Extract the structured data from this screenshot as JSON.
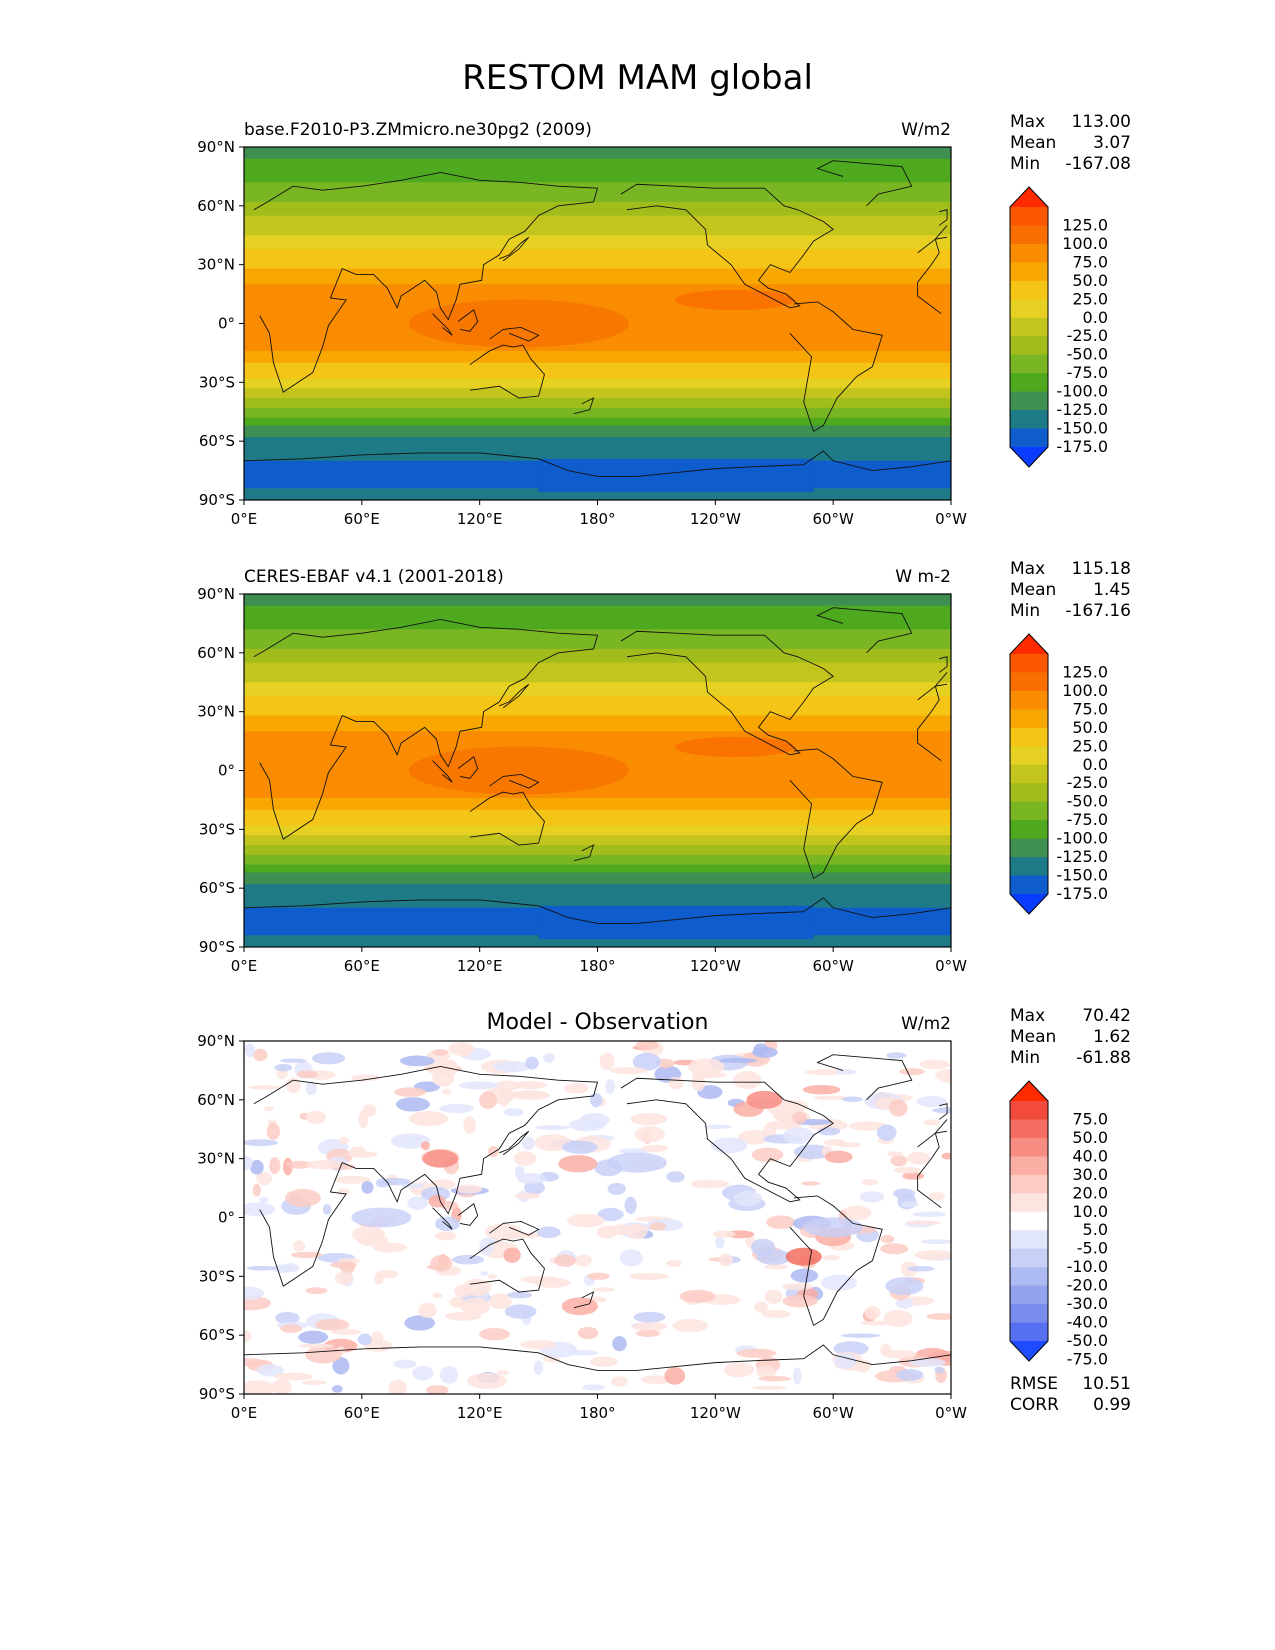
{
  "title": "RESTOM MAM global",
  "chart_data": [
    {
      "type": "heatmap",
      "title": "base.F2010-P3.ZMmicro.ne30pg2 (2009)",
      "units": "W/m2",
      "stats": {
        "max_label": "Max",
        "max": "113.00",
        "mean_label": "Mean",
        "mean": "3.07",
        "min_label": "Min",
        "min": "-167.08"
      },
      "colorbar": {
        "levels": [
          "125.0",
          "100.0",
          "75.0",
          "50.0",
          "25.0",
          "0.0",
          "-25.0",
          "-50.0",
          "-75.0",
          "-100.0",
          "-125.0",
          "-150.0",
          "-175.0"
        ],
        "colors": [
          "#ff2a00",
          "#fb5700",
          "#f86e00",
          "#f98c00",
          "#f8a700",
          "#f4c416",
          "#e6d022",
          "#c4c41e",
          "#a1bd1c",
          "#7ab623",
          "#4ea91f",
          "#3f8e52",
          "#1e7a86",
          "#0f5ccc",
          "#0a3cff"
        ]
      },
      "xlabels": [
        "0°E",
        "60°E",
        "120°E",
        "180°",
        "120°W",
        "60°W",
        "0°W"
      ],
      "ylabels": [
        "90°N",
        "60°N",
        "30°N",
        "0°",
        "30°S",
        "60°S",
        "90°S"
      ],
      "xlim": [
        0,
        360
      ],
      "ylim": [
        -90,
        90
      ]
    },
    {
      "type": "heatmap",
      "title": "CERES-EBAF v4.1 (2001-2018)",
      "units": "W m-2",
      "stats": {
        "max_label": "Max",
        "max": "115.18",
        "mean_label": "Mean",
        "mean": "1.45",
        "min_label": "Min",
        "min": "-167.16"
      },
      "colorbar": {
        "levels": [
          "125.0",
          "100.0",
          "75.0",
          "50.0",
          "25.0",
          "0.0",
          "-25.0",
          "-50.0",
          "-75.0",
          "-100.0",
          "-125.0",
          "-150.0",
          "-175.0"
        ],
        "colors": [
          "#ff2a00",
          "#fb5700",
          "#f86e00",
          "#f98c00",
          "#f8a700",
          "#f4c416",
          "#e6d022",
          "#c4c41e",
          "#a1bd1c",
          "#7ab623",
          "#4ea91f",
          "#3f8e52",
          "#1e7a86",
          "#0f5ccc",
          "#0a3cff"
        ]
      },
      "xlabels": [
        "0°E",
        "60°E",
        "120°E",
        "180°",
        "120°W",
        "60°W",
        "0°W"
      ],
      "ylabels": [
        "90°N",
        "60°N",
        "30°N",
        "0°",
        "30°S",
        "60°S",
        "90°S"
      ],
      "xlim": [
        0,
        360
      ],
      "ylim": [
        -90,
        90
      ]
    },
    {
      "type": "heatmap",
      "title": "Model - Observation",
      "units": "W/m2",
      "stats": {
        "max_label": "Max",
        "max": "70.42",
        "mean_label": "Mean",
        "mean": "1.62",
        "min_label": "Min",
        "min": "-61.88"
      },
      "extra_stats": {
        "rmse_label": "RMSE",
        "rmse": "10.51",
        "corr_label": "CORR",
        "corr": "0.99"
      },
      "colorbar": {
        "levels": [
          "75.0",
          "50.0",
          "40.0",
          "30.0",
          "20.0",
          "10.0",
          "5.0",
          "-5.0",
          "-10.0",
          "-20.0",
          "-30.0",
          "-40.0",
          "-50.0",
          "-75.0"
        ],
        "colors": [
          "#ff2a00",
          "#f24a3c",
          "#f56d60",
          "#f78d82",
          "#faaea4",
          "#fcccc4",
          "#fde4df",
          "#ffffff",
          "#e2e6fb",
          "#c8d0f7",
          "#aebaf2",
          "#93a3ee",
          "#7a8ded",
          "#5770f2",
          "#1f4bff"
        ]
      },
      "xlabels": [
        "0°E",
        "60°E",
        "120°E",
        "180°",
        "120°W",
        "60°W",
        "0°W"
      ],
      "ylabels": [
        "90°N",
        "60°N",
        "30°N",
        "0°",
        "30°S",
        "60°S",
        "90°S"
      ],
      "xlim": [
        0,
        360
      ],
      "ylim": [
        -90,
        90
      ]
    }
  ]
}
